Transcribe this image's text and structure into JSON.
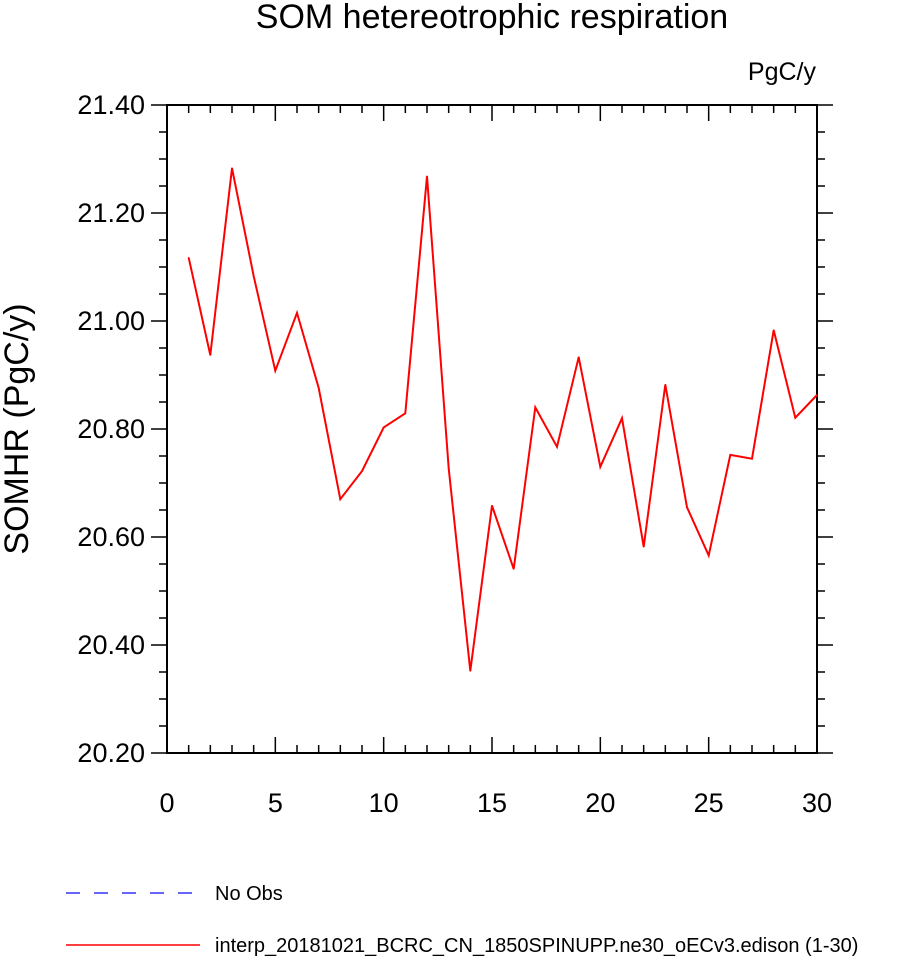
{
  "chart_data": {
    "type": "line",
    "title": "SOM hetereotrophic respiration",
    "units": "PgC/y",
    "ylabel": "SOMHR  (PgC/y)",
    "xlabel": "",
    "xlim": [
      0,
      30
    ],
    "ylim": [
      20.2,
      21.4
    ],
    "xticks": [
      0,
      5,
      10,
      15,
      20,
      25,
      30
    ],
    "yticks": [
      "20.20",
      "20.40",
      "20.60",
      "20.80",
      "21.00",
      "21.20",
      "21.40"
    ],
    "grid": false,
    "legend_position": "bottom-left",
    "series": [
      {
        "name": "interp_20181021_BCRC_CN_1850SPINUPP.ne30_oECv3.edison (1-30)",
        "color": "#ff0000",
        "style": "solid",
        "x": [
          1,
          2,
          3,
          4,
          5,
          6,
          7,
          8,
          9,
          10,
          11,
          12,
          13,
          14,
          15,
          16,
          17,
          18,
          19,
          20,
          21,
          22,
          23,
          24,
          25,
          26,
          27,
          28,
          29,
          30
        ],
        "y": [
          21.117,
          20.937,
          21.283,
          21.083,
          20.908,
          21.015,
          20.876,
          20.67,
          20.722,
          20.803,
          20.829,
          21.268,
          20.727,
          20.352,
          20.658,
          20.541,
          20.84,
          20.767,
          20.933,
          20.73,
          20.82,
          20.582,
          20.882,
          20.655,
          20.566,
          20.752,
          20.745,
          20.983,
          20.821,
          20.863
        ]
      }
    ],
    "legend": [
      {
        "label": "No Obs",
        "color": "#3333ff",
        "style": "dashed"
      },
      {
        "label": "interp_20181021_BCRC_CN_1850SPINUPP.ne30_oECv3.edison (1-30)",
        "color": "#ff0000",
        "style": "solid"
      }
    ]
  }
}
